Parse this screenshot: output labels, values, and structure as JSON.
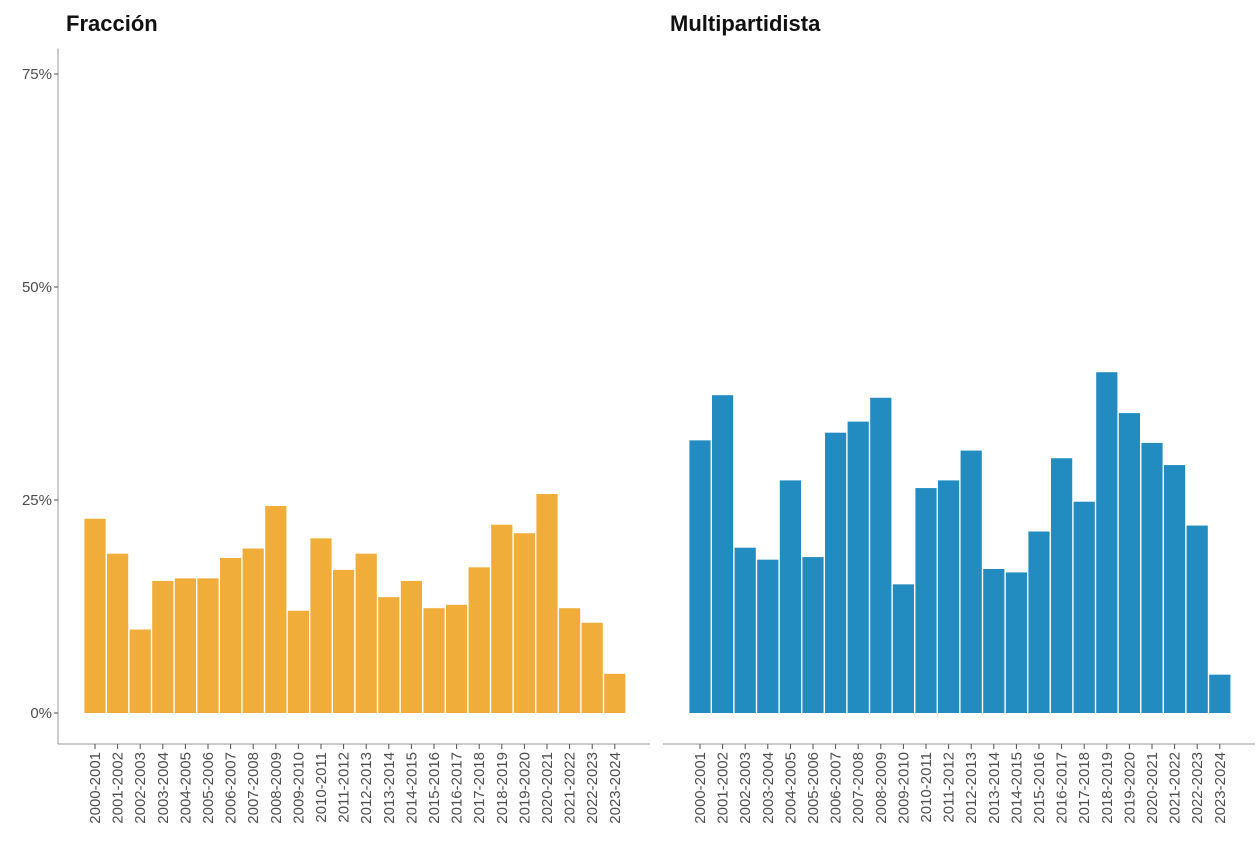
{
  "chart_data": [
    {
      "type": "bar",
      "title": "Fracción",
      "color": "#F0AD3A",
      "ylim": [
        0,
        0.78
      ],
      "yticks": [
        0,
        0.25,
        0.5,
        0.75
      ],
      "ytick_labels": [
        "0%",
        "25%",
        "50%",
        "75%"
      ],
      "grid": false,
      "categories": [
        "2000-2001",
        "2001-2002",
        "2002-2003",
        "2003-2004",
        "2004-2005",
        "2005-2006",
        "2006-2007",
        "2007-2008",
        "2008-2009",
        "2009-2010",
        "2010-2011",
        "2011-2012",
        "2012-2013",
        "2013-2014",
        "2014-2015",
        "2015-2016",
        "2016-2017",
        "2017-2018",
        "2018-2019",
        "2019-2020",
        "2020-2021",
        "2021-2022",
        "2022-2023",
        "2023-2024"
      ],
      "values": [
        0.228,
        0.187,
        0.098,
        0.155,
        0.158,
        0.158,
        0.182,
        0.193,
        0.243,
        0.12,
        0.205,
        0.168,
        0.187,
        0.136,
        0.155,
        0.123,
        0.127,
        0.171,
        0.221,
        0.211,
        0.257,
        0.123,
        0.106,
        0.046
      ]
    },
    {
      "type": "bar",
      "title": "Multipartidista",
      "color": "#228BC0",
      "ylim": [
        0,
        0.78
      ],
      "yticks": [
        0,
        0.25,
        0.5,
        0.75
      ],
      "ytick_labels": [
        "0%",
        "25%",
        "50%",
        "75%"
      ],
      "grid": false,
      "categories": [
        "2000-2001",
        "2001-2002",
        "2002-2003",
        "2003-2004",
        "2004-2005",
        "2005-2006",
        "2006-2007",
        "2007-2008",
        "2008-2009",
        "2009-2010",
        "2010-2011",
        "2011-2012",
        "2012-2013",
        "2013-2014",
        "2014-2015",
        "2015-2016",
        "2016-2017",
        "2017-2018",
        "2018-2019",
        "2019-2020",
        "2020-2021",
        "2021-2022",
        "2022-2023",
        "2023-2024"
      ],
      "values": [
        0.32,
        0.373,
        0.194,
        0.18,
        0.273,
        0.183,
        0.329,
        0.342,
        0.37,
        0.151,
        0.264,
        0.273,
        0.308,
        0.169,
        0.165,
        0.213,
        0.299,
        0.248,
        0.4,
        0.352,
        0.317,
        0.291,
        0.22,
        0.045
      ]
    }
  ]
}
